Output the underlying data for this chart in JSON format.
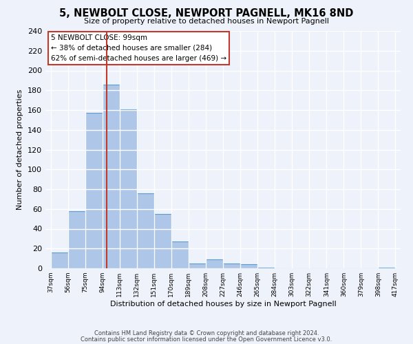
{
  "title": "5, NEWBOLT CLOSE, NEWPORT PAGNELL, MK16 8ND",
  "subtitle": "Size of property relative to detached houses in Newport Pagnell",
  "xlabel": "Distribution of detached houses by size in Newport Pagnell",
  "ylabel": "Number of detached properties",
  "bar_color": "#aec6e8",
  "bar_edge_color": "#5b9bd5",
  "background_color": "#eef2fa",
  "grid_color": "white",
  "vline_x": 99,
  "vline_color": "#c0392b",
  "annotation_title": "5 NEWBOLT CLOSE: 99sqm",
  "annotation_line1": "← 38% of detached houses are smaller (284)",
  "annotation_line2": "62% of semi-detached houses are larger (469) →",
  "annotation_box_color": "white",
  "annotation_box_edge_color": "#c0392b",
  "bin_edges": [
    37,
    56,
    75,
    94,
    113,
    132,
    151,
    170,
    189,
    208,
    227,
    246,
    265,
    284,
    303,
    322,
    341,
    360,
    379,
    398,
    417
  ],
  "bin_values": [
    16,
    58,
    157,
    186,
    161,
    76,
    55,
    27,
    5,
    9,
    5,
    4,
    1,
    0,
    0,
    0,
    0,
    0,
    0,
    1
  ],
  "ylim": [
    0,
    240
  ],
  "yticks": [
    0,
    20,
    40,
    60,
    80,
    100,
    120,
    140,
    160,
    180,
    200,
    220,
    240
  ],
  "footnote1": "Contains HM Land Registry data © Crown copyright and database right 2024.",
  "footnote2": "Contains public sector information licensed under the Open Government Licence v3.0."
}
